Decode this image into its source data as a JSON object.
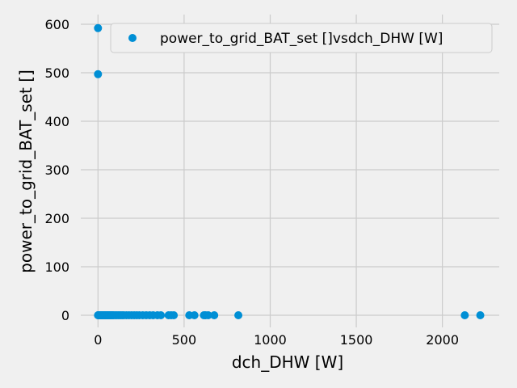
{
  "chart_data": {
    "type": "scatter",
    "title": "",
    "xlabel": "dch_DHW [W]",
    "ylabel": "power_to_grid_BAT_set []",
    "xlim": [
      -100,
      2330
    ],
    "ylim": [
      -25,
      620
    ],
    "x_ticks": [
      0,
      500,
      1000,
      1500,
      2000
    ],
    "y_ticks": [
      0,
      100,
      200,
      300,
      400,
      500,
      600
    ],
    "grid": true,
    "legend_position": "top-right",
    "series": [
      {
        "name": "power_to_grid_BAT_set []vsdch_DHW [W]",
        "color": "#008fd5",
        "points": [
          [
            0,
            592
          ],
          [
            0,
            497
          ],
          [
            0,
            0
          ],
          [
            2,
            0
          ],
          [
            4,
            0
          ],
          [
            6,
            0
          ],
          [
            8,
            0
          ],
          [
            10,
            0
          ],
          [
            12,
            0
          ],
          [
            14,
            0
          ],
          [
            16,
            0
          ],
          [
            18,
            0
          ],
          [
            20,
            0
          ],
          [
            22,
            0
          ],
          [
            25,
            0
          ],
          [
            28,
            0
          ],
          [
            30,
            0
          ],
          [
            33,
            0
          ],
          [
            36,
            0
          ],
          [
            40,
            0
          ],
          [
            43,
            0
          ],
          [
            46,
            0
          ],
          [
            50,
            0
          ],
          [
            54,
            0
          ],
          [
            58,
            0
          ],
          [
            62,
            0
          ],
          [
            66,
            0
          ],
          [
            70,
            0
          ],
          [
            75,
            0
          ],
          [
            80,
            0
          ],
          [
            85,
            0
          ],
          [
            90,
            0
          ],
          [
            100,
            0
          ],
          [
            110,
            0
          ],
          [
            120,
            0
          ],
          [
            130,
            0
          ],
          [
            140,
            0
          ],
          [
            150,
            0
          ],
          [
            165,
            0
          ],
          [
            180,
            0
          ],
          [
            195,
            0
          ],
          [
            210,
            0
          ],
          [
            225,
            0
          ],
          [
            240,
            0
          ],
          [
            260,
            0
          ],
          [
            280,
            0
          ],
          [
            300,
            0
          ],
          [
            320,
            0
          ],
          [
            345,
            0
          ],
          [
            365,
            0
          ],
          [
            410,
            0
          ],
          [
            425,
            0
          ],
          [
            440,
            0
          ],
          [
            530,
            0
          ],
          [
            560,
            0
          ],
          [
            615,
            0
          ],
          [
            625,
            0
          ],
          [
            640,
            0
          ],
          [
            675,
            0
          ],
          [
            815,
            0
          ],
          [
            2130,
            0
          ],
          [
            2220,
            0
          ]
        ]
      }
    ]
  }
}
